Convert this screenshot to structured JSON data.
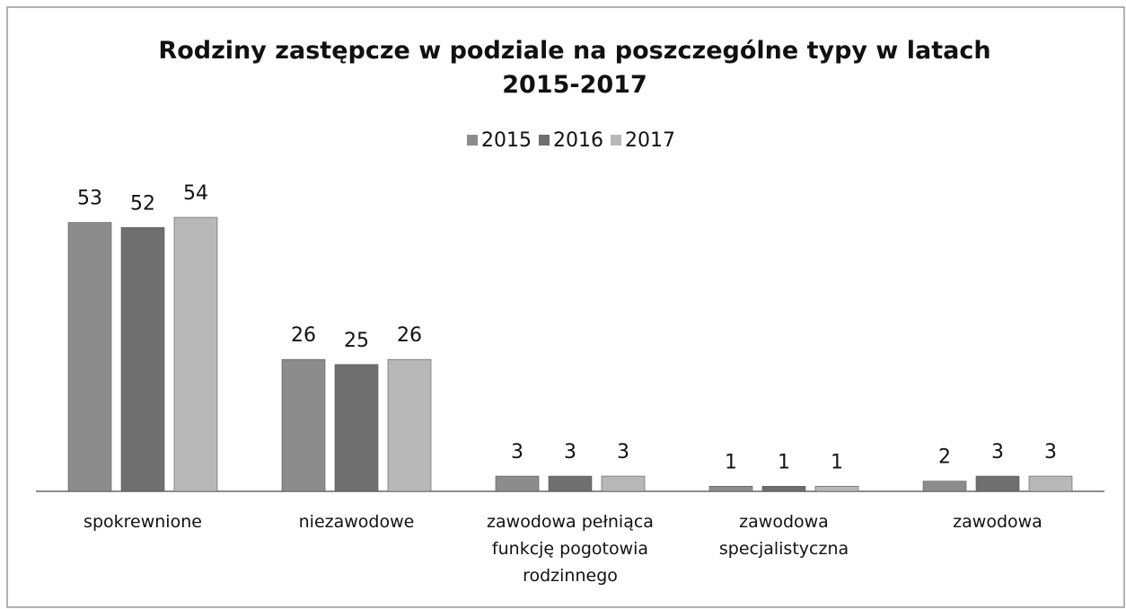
{
  "chart_data": {
    "type": "bar",
    "title": "Rodziny zastępcze w podziale na poszczególne typy w latach 2015-2017",
    "categories": [
      "spokrewnione",
      "niezawodowe",
      "zawodowa pełniąca funkcję pogotowia rodzinnego",
      "zawodowa specjalistyczna",
      "zawodowa"
    ],
    "series": [
      {
        "name": "2015",
        "color": "#8c8c8c",
        "values": [
          53,
          26,
          3,
          1,
          2
        ]
      },
      {
        "name": "2016",
        "color": "#6f6f6f",
        "values": [
          52,
          25,
          3,
          1,
          3
        ]
      },
      {
        "name": "2017",
        "color": "#b8b8b8",
        "values": [
          54,
          26,
          3,
          1,
          3
        ]
      }
    ],
    "legend": "top"
  }
}
